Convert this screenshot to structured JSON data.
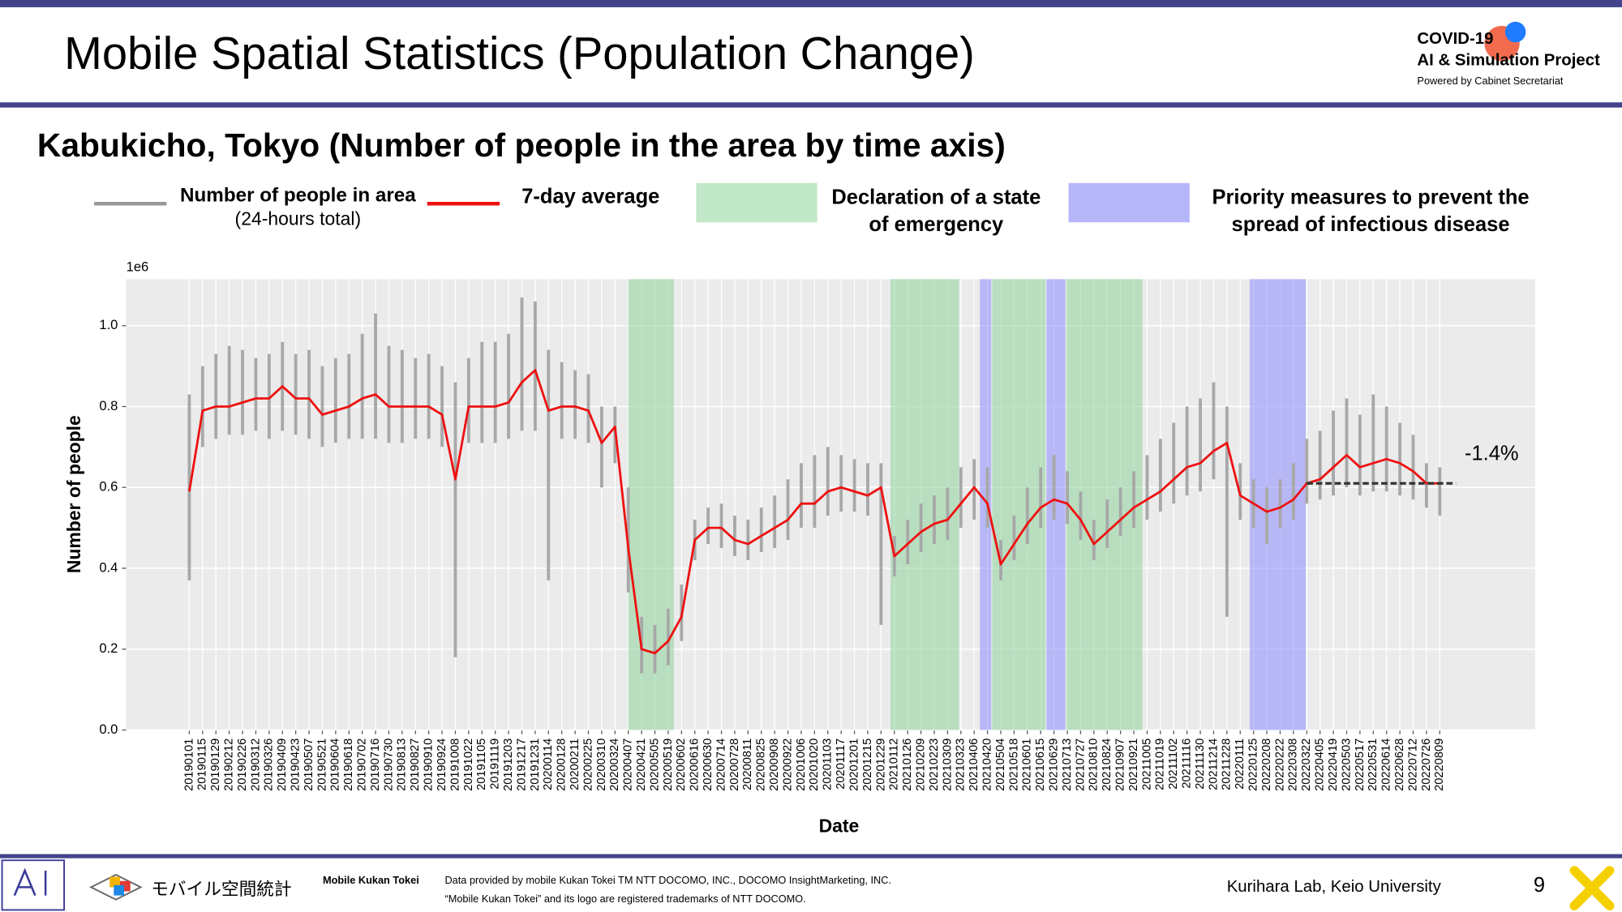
{
  "header": {
    "title": "Mobile Spatial Statistics (Population Change)",
    "logo_lines": [
      "COVID-19",
      "AI & Simulation Project"
    ],
    "logo_sub": "Powered by Cabinet Secretariat"
  },
  "footer": {
    "brand_jp": "モバイル空間統計",
    "brand_en": "Mobile Kukan Tokei",
    "credit_lines": [
      "Data provided by mobile Kukan Tokei TM NTT DOCOMO, INC., DOCOMO InsightMarketing, INC.",
      "“Mobile Kukan Tokei” and its logo are registered trademarks of NTT DOCOMO."
    ],
    "lab": "Kurihara Lab, Keio University",
    "page": 9
  },
  "chart_data": {
    "type": "line",
    "title": "Kabukicho, Tokyo (Number of people in the area by time axis)",
    "x_label": "Date",
    "y_label": "Number of people",
    "y_offset_label": "1e6",
    "categories": [
      "20190101",
      "20190115",
      "20190129",
      "20190212",
      "20190226",
      "20190312",
      "20190326",
      "20190409",
      "20190423",
      "20190507",
      "20190521",
      "20190604",
      "20190618",
      "20190702",
      "20190716",
      "20190730",
      "20190813",
      "20190827",
      "20190910",
      "20190924",
      "20191008",
      "20191022",
      "20191105",
      "20191119",
      "20191203",
      "20191217",
      "20191231",
      "20200114",
      "20200128",
      "20200211",
      "20200225",
      "20200310",
      "20200324",
      "20200407",
      "20200421",
      "20200505",
      "20200519",
      "20200602",
      "20200616",
      "20200630",
      "20200714",
      "20200728",
      "20200811",
      "20200825",
      "20200908",
      "20200922",
      "20201006",
      "20201020",
      "20201103",
      "20201117",
      "20201201",
      "20201215",
      "20201229",
      "20210112",
      "20210126",
      "20210209",
      "20210223",
      "20210309",
      "20210323",
      "20210406",
      "20210420",
      "20210504",
      "20210518",
      "20210601",
      "20210615",
      "20210629",
      "20210713",
      "20210727",
      "20210810",
      "20210824",
      "20210907",
      "20210921",
      "20211005",
      "20211019",
      "20211102",
      "20211116",
      "20211130",
      "20211214",
      "20211228",
      "20220111",
      "20220125",
      "20220208",
      "20220222",
      "20220308",
      "20220322",
      "20220405",
      "20220419",
      "20220503",
      "20220517",
      "20220531",
      "20220614",
      "20220628",
      "20220712",
      "20220726",
      "20220809"
    ],
    "series": [
      {
        "name": "Number of people in area",
        "name_note": "(24-hours total)",
        "color": "#a8a8a8",
        "low": [
          0.37,
          0.7,
          0.72,
          0.73,
          0.73,
          0.74,
          0.72,
          0.74,
          0.73,
          0.72,
          0.7,
          0.71,
          0.72,
          0.72,
          0.72,
          0.71,
          0.71,
          0.72,
          0.72,
          0.7,
          0.18,
          0.71,
          0.71,
          0.71,
          0.72,
          0.74,
          0.74,
          0.37,
          0.72,
          0.72,
          0.71,
          0.6,
          0.66,
          0.34,
          0.14,
          0.14,
          0.16,
          0.22,
          0.42,
          0.46,
          0.45,
          0.43,
          0.42,
          0.44,
          0.45,
          0.47,
          0.5,
          0.5,
          0.53,
          0.54,
          0.54,
          0.53,
          0.26,
          0.38,
          0.41,
          0.44,
          0.46,
          0.47,
          0.5,
          0.52,
          0.5,
          0.37,
          0.42,
          0.46,
          0.5,
          0.52,
          0.51,
          0.47,
          0.42,
          0.45,
          0.48,
          0.5,
          0.52,
          0.54,
          0.56,
          0.58,
          0.59,
          0.62,
          0.28,
          0.52,
          0.5,
          0.46,
          0.5,
          0.52,
          0.56,
          0.57,
          0.58,
          0.6,
          0.58,
          0.59,
          0.59,
          0.58,
          0.57,
          0.55,
          0.53
        ],
        "high": [
          0.83,
          0.9,
          0.93,
          0.95,
          0.94,
          0.92,
          0.93,
          0.96,
          0.93,
          0.94,
          0.9,
          0.92,
          0.93,
          0.98,
          1.03,
          0.95,
          0.94,
          0.92,
          0.93,
          0.9,
          0.86,
          0.92,
          0.96,
          0.96,
          0.98,
          1.07,
          1.06,
          0.94,
          0.91,
          0.89,
          0.88,
          0.8,
          0.8,
          0.6,
          0.28,
          0.26,
          0.3,
          0.36,
          0.52,
          0.55,
          0.56,
          0.53,
          0.52,
          0.55,
          0.58,
          0.62,
          0.66,
          0.68,
          0.7,
          0.68,
          0.67,
          0.66,
          0.66,
          0.48,
          0.52,
          0.56,
          0.58,
          0.6,
          0.65,
          0.67,
          0.65,
          0.47,
          0.53,
          0.6,
          0.65,
          0.68,
          0.64,
          0.59,
          0.52,
          0.57,
          0.6,
          0.64,
          0.68,
          0.72,
          0.76,
          0.8,
          0.82,
          0.86,
          0.8,
          0.66,
          0.62,
          0.6,
          0.62,
          0.66,
          0.72,
          0.74,
          0.79,
          0.82,
          0.78,
          0.83,
          0.8,
          0.76,
          0.73,
          0.66,
          0.65
        ]
      },
      {
        "name": "7-day average",
        "color": "#ee1111",
        "values": [
          0.59,
          0.79,
          0.8,
          0.8,
          0.81,
          0.82,
          0.82,
          0.85,
          0.82,
          0.82,
          0.78,
          0.79,
          0.8,
          0.82,
          0.83,
          0.8,
          0.8,
          0.8,
          0.8,
          0.78,
          0.62,
          0.8,
          0.8,
          0.8,
          0.81,
          0.86,
          0.89,
          0.79,
          0.8,
          0.8,
          0.79,
          0.71,
          0.75,
          0.45,
          0.2,
          0.19,
          0.22,
          0.28,
          0.47,
          0.5,
          0.5,
          0.47,
          0.46,
          0.48,
          0.5,
          0.52,
          0.56,
          0.56,
          0.59,
          0.6,
          0.59,
          0.58,
          0.6,
          0.43,
          0.46,
          0.49,
          0.51,
          0.52,
          0.56,
          0.6,
          0.56,
          0.41,
          0.46,
          0.51,
          0.55,
          0.57,
          0.56,
          0.52,
          0.46,
          0.49,
          0.52,
          0.55,
          0.57,
          0.59,
          0.62,
          0.65,
          0.66,
          0.69,
          0.71,
          0.58,
          0.56,
          0.54,
          0.55,
          0.57,
          0.61,
          0.62,
          0.65,
          0.68,
          0.65,
          0.66,
          0.67,
          0.66,
          0.64,
          0.61,
          0.61
        ]
      }
    ],
    "spans": [
      {
        "label_lines": [
          "Declaration of a state",
          "of emergency"
        ],
        "color": "#8ed39a",
        "legend_color": "#c1e8c8",
        "ranges": [
          [
            "20200407",
            "20200525"
          ],
          [
            "20210108",
            "20210321"
          ],
          [
            "20210425",
            "20210620"
          ],
          [
            "20210712",
            "20210930"
          ]
        ]
      },
      {
        "label_lines": [
          "Priority measures to prevent the",
          "spread of infectious disease"
        ],
        "color": "#8c8cff",
        "legend_color": "#b6b6fb",
        "ranges": [
          [
            "20210412",
            "20210424"
          ],
          [
            "20210621",
            "20210711"
          ],
          [
            "20220121",
            "20220321"
          ]
        ]
      }
    ],
    "annotation": {
      "text": "-1.4%",
      "reference_value": 0.61,
      "start": "20220322",
      "end": "20220826"
    },
    "ylim": [
      0,
      1.115
    ],
    "yticks": [
      {
        "value": 0,
        "label": "0.0"
      },
      0.2,
      0.4,
      0.6,
      0.8,
      {
        "value": 1,
        "label": "1.0"
      }
    ],
    "grid": true
  }
}
